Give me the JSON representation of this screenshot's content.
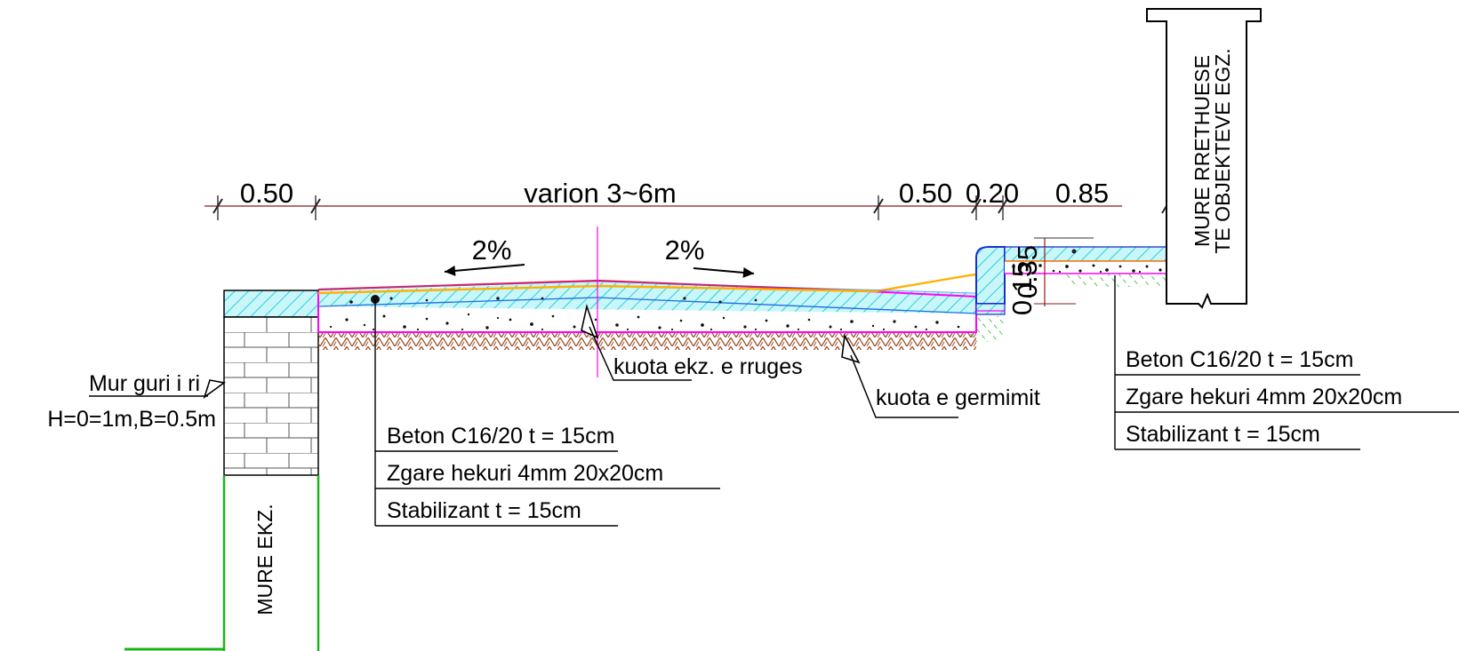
{
  "dimensions": {
    "d1": "0.50",
    "d2": "varion 3~6m",
    "d3": "0.50",
    "d4": "0.20",
    "d5": "0.85",
    "v1": "0.35",
    "v2": "0.15"
  },
  "slopes": {
    "left": "2%",
    "right": "2%"
  },
  "labels": {
    "wall_new": "Mur guri i ri",
    "wall_new_size": "H=0=1m,B=0.5m",
    "existing_road_level": "kuota ekz. e rruges",
    "excavation_level": "kuota e germimit",
    "existing_wall": "MURE EKZ.",
    "boundary_wall_1": "MURE RRETHUESE",
    "boundary_wall_2": "TE OBJEKTEVE EGZ."
  },
  "layers_left": [
    "Beton C16/20 t = 15cm",
    "Zgare hekuri 4mm 20x20cm",
    "Stabilizant  t = 15cm"
  ],
  "layers_right": [
    "Beton C16/20 t = 15cm",
    "Zgare hekuri 4mm 20x20cm",
    "Stabilizant  t = 15cm"
  ],
  "colors": {
    "concrete_hatch": "#00d8e8",
    "concrete_fill": "#c9f6f8",
    "road_line": "#ff1050",
    "gradient_line": "#ffb000",
    "excavation_line": "#ff00ff",
    "soil_hatch": "#a0522d",
    "existing_wall": "#20b020",
    "dim_line": "#8b1a1a",
    "curb": "#1a2fd0"
  }
}
